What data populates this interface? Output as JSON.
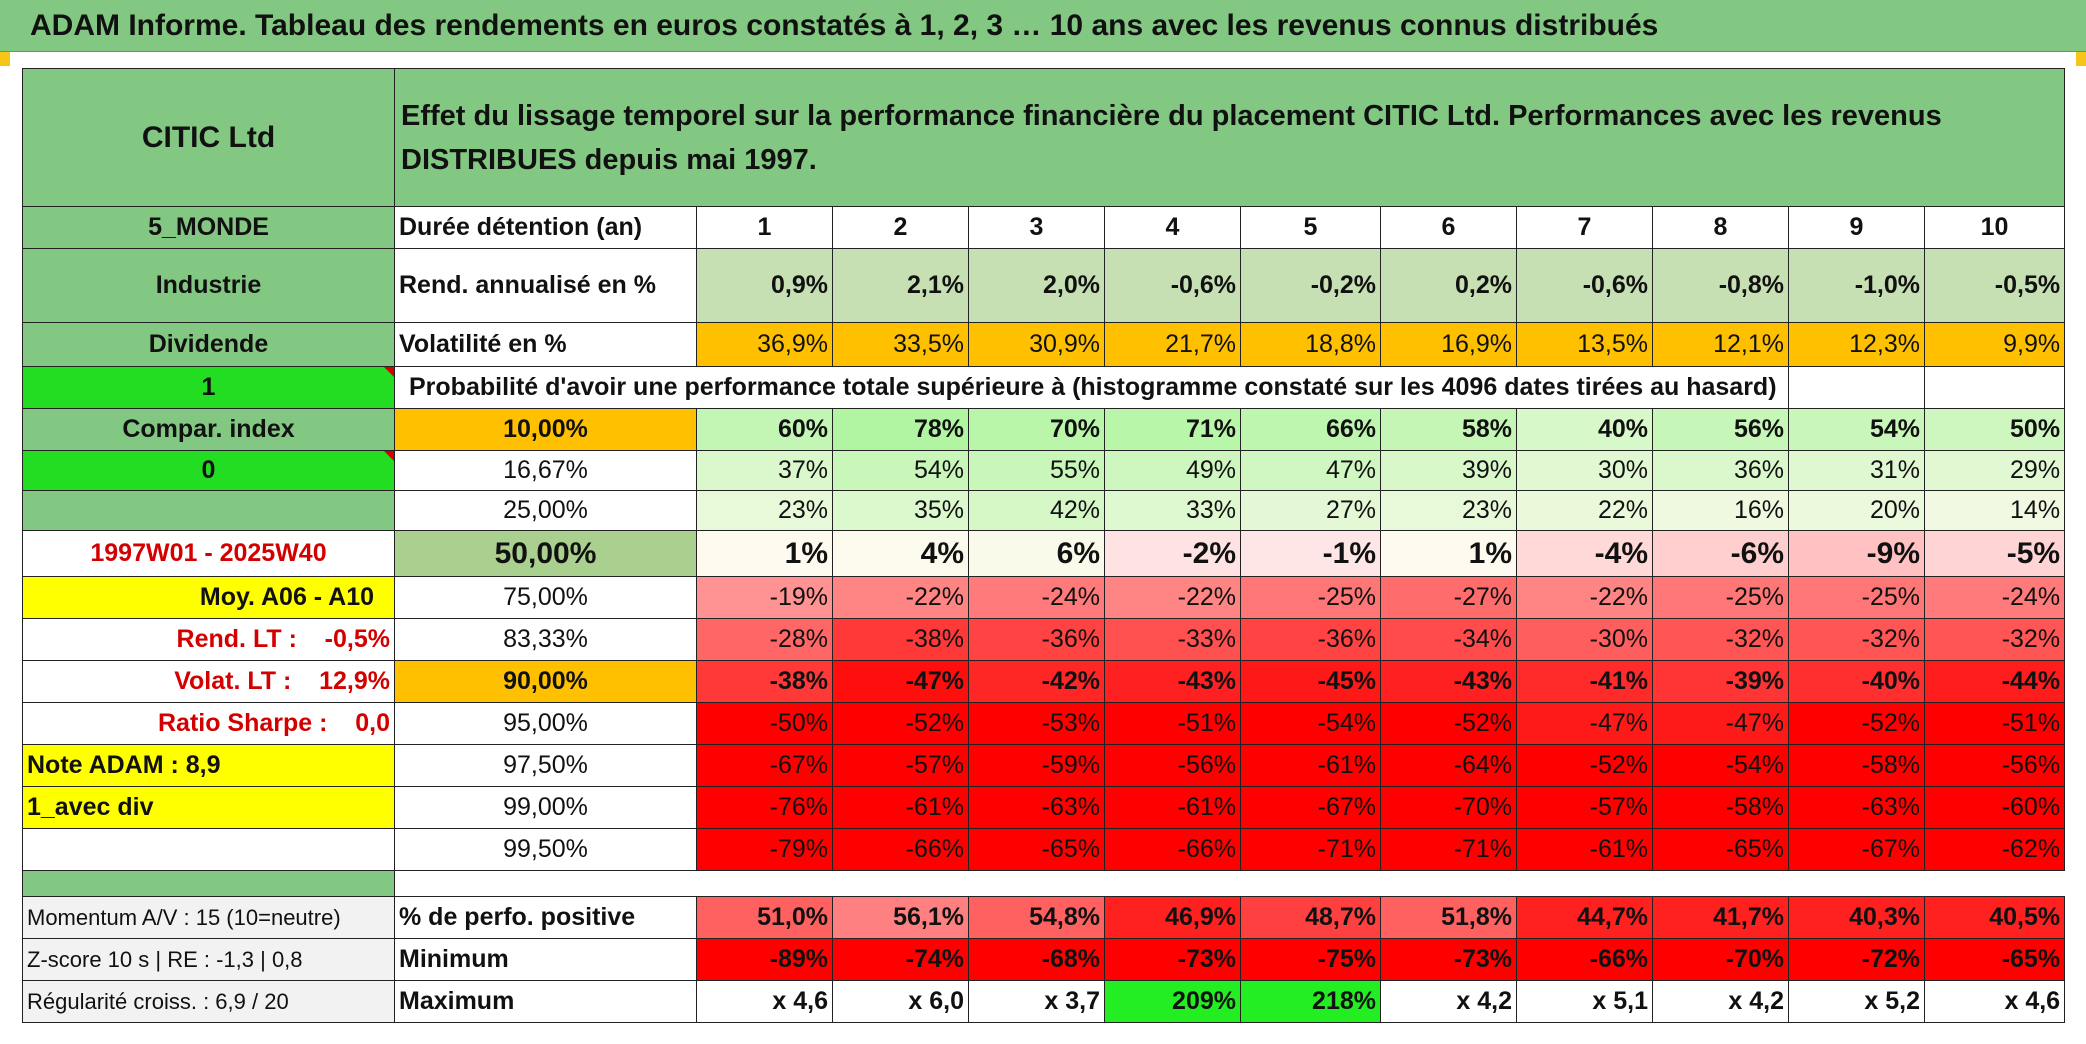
{
  "banner": {
    "title": "ADAM Informe. Tableau des rendements en euros constatés à 1, 2, 3 … 10 ans avec les revenus connus distribués"
  },
  "header": {
    "name": "CITIC Ltd",
    "description": "Effet du lissage temporel sur la performance financière du placement CITIC Ltd. Performances avec les revenus DISTRIBUES depuis mai 1997."
  },
  "left": {
    "region": "5_MONDE",
    "sector": "Industrie",
    "dividend": "Dividende",
    "flag1": "1",
    "compar": "Compar. index",
    "flag0": "0",
    "blank": "",
    "period": "1997W01 - 2025W40",
    "moy": "Moy. A06 - A10",
    "rend_lt": "Rend. LT :    -0,5%",
    "volat_lt": "Volat. LT :    12,9%",
    "sharpe": "Ratio Sharpe :    0,0",
    "note": "Note ADAM : 8,9",
    "div_mode": "1_avec div",
    "momentum": "Momentum A/V : 15 (10=neutre)",
    "zscore": "Z-score 10 s | RE : -1,3 | 0,8",
    "regularite": "Régularité croiss. : 6,9 / 20"
  },
  "labels": {
    "duree": "Durée détention (an)",
    "rend": "Rend. annualisé en %",
    "vol": "Volatilité en %",
    "proba": "Probabilité d'avoir une performance totale supérieure à (histogramme constaté sur les 4096 dates tirées au hasard)",
    "positive": "% de perfo. positive",
    "minimum": "Minimum",
    "maximum": "Maximum"
  },
  "years": [
    "1",
    "2",
    "3",
    "4",
    "5",
    "6",
    "7",
    "8",
    "9",
    "10"
  ],
  "rend": [
    "0,9%",
    "2,1%",
    "2,0%",
    "-0,6%",
    "-0,2%",
    "0,2%",
    "-0,6%",
    "-0,8%",
    "-1,0%",
    "-0,5%"
  ],
  "vol": [
    "36,9%",
    "33,5%",
    "30,9%",
    "21,7%",
    "18,8%",
    "16,9%",
    "13,5%",
    "12,1%",
    "12,3%",
    "9,9%"
  ],
  "percentiles": [
    {
      "p": "10,00%",
      "v": [
        "60%",
        "78%",
        "70%",
        "71%",
        "66%",
        "58%",
        "40%",
        "56%",
        "54%",
        "50%"
      ]
    },
    {
      "p": "16,67%",
      "v": [
        "37%",
        "54%",
        "55%",
        "49%",
        "47%",
        "39%",
        "30%",
        "36%",
        "31%",
        "29%"
      ]
    },
    {
      "p": "25,00%",
      "v": [
        "23%",
        "35%",
        "42%",
        "33%",
        "27%",
        "23%",
        "22%",
        "16%",
        "20%",
        "14%"
      ]
    },
    {
      "p": "50,00%",
      "v": [
        "1%",
        "4%",
        "6%",
        "-2%",
        "-1%",
        "1%",
        "-4%",
        "-6%",
        "-9%",
        "-5%"
      ]
    },
    {
      "p": "75,00%",
      "v": [
        "-19%",
        "-22%",
        "-24%",
        "-22%",
        "-25%",
        "-27%",
        "-22%",
        "-25%",
        "-25%",
        "-24%"
      ]
    },
    {
      "p": "83,33%",
      "v": [
        "-28%",
        "-38%",
        "-36%",
        "-33%",
        "-36%",
        "-34%",
        "-30%",
        "-32%",
        "-32%",
        "-32%"
      ]
    },
    {
      "p": "90,00%",
      "v": [
        "-38%",
        "-47%",
        "-42%",
        "-43%",
        "-45%",
        "-43%",
        "-41%",
        "-39%",
        "-40%",
        "-44%"
      ]
    },
    {
      "p": "95,00%",
      "v": [
        "-50%",
        "-52%",
        "-53%",
        "-51%",
        "-54%",
        "-52%",
        "-47%",
        "-47%",
        "-52%",
        "-51%"
      ]
    },
    {
      "p": "97,50%",
      "v": [
        "-67%",
        "-57%",
        "-59%",
        "-56%",
        "-61%",
        "-64%",
        "-52%",
        "-54%",
        "-58%",
        "-56%"
      ]
    },
    {
      "p": "99,00%",
      "v": [
        "-76%",
        "-61%",
        "-63%",
        "-61%",
        "-67%",
        "-70%",
        "-57%",
        "-58%",
        "-63%",
        "-60%"
      ]
    },
    {
      "p": "99,50%",
      "v": [
        "-79%",
        "-66%",
        "-65%",
        "-66%",
        "-71%",
        "-71%",
        "-61%",
        "-65%",
        "-67%",
        "-62%"
      ]
    }
  ],
  "positive": [
    "51,0%",
    "56,1%",
    "54,8%",
    "46,9%",
    "48,7%",
    "51,8%",
    "44,7%",
    "41,7%",
    "40,3%",
    "40,5%"
  ],
  "minimum": [
    "-89%",
    "-74%",
    "-68%",
    "-73%",
    "-75%",
    "-73%",
    "-66%",
    "-70%",
    "-72%",
    "-65%"
  ],
  "maximum": [
    "x 4,6",
    "x 6,0",
    "x 3,7",
    "209%",
    "218%",
    "x 4,2",
    "x 5,1",
    "x 4,2",
    "x 5,2",
    "x 4,6"
  ],
  "colors": {
    "header_green": "#82c882",
    "bright_green": "#22dd22",
    "orange": "#ffc000",
    "yellow": "#ffff00",
    "label_red": "#d40000"
  }
}
